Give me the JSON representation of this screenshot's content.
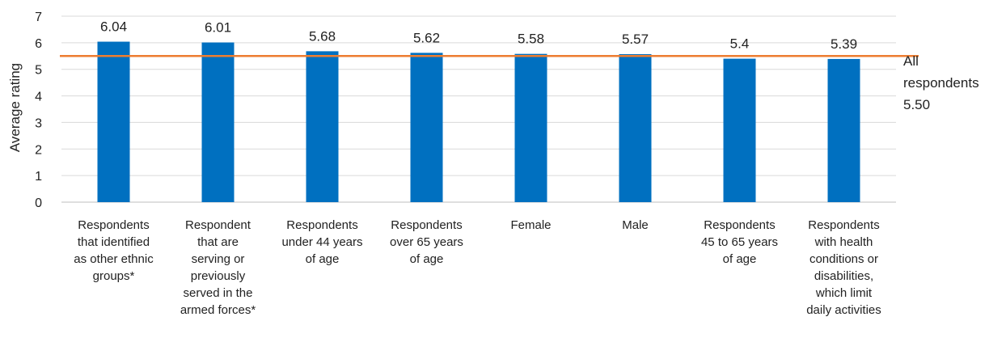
{
  "chart_data": {
    "type": "bar",
    "ylabel": "Average rating",
    "ylim": [
      0,
      7
    ],
    "yticks": [
      0,
      1,
      2,
      3,
      4,
      5,
      6,
      7
    ],
    "grid": true,
    "categories": [
      [
        "Respondents",
        "that identified",
        "as other ethnic",
        "groups*"
      ],
      [
        "Respondent",
        "that are",
        "serving or",
        "previously",
        "served in the",
        "armed forces*"
      ],
      [
        "Respondents",
        "under 44 years",
        "of age"
      ],
      [
        "Respondents",
        "over 65 years",
        "of age"
      ],
      [
        "Female"
      ],
      [
        "Male"
      ],
      [
        "Respondents",
        "45 to 65 years",
        "of age"
      ],
      [
        "Respondents",
        "with health",
        "conditions or",
        "disabilities,",
        "which limit",
        "daily activities"
      ]
    ],
    "values": [
      6.04,
      6.01,
      5.68,
      5.62,
      5.58,
      5.57,
      5.4,
      5.39
    ],
    "value_labels": [
      "6.04",
      "6.01",
      "5.68",
      "5.62",
      "5.58",
      "5.57",
      "5.4",
      "5.39"
    ],
    "reference_line": {
      "value": 5.5,
      "label_lines": [
        "All",
        "respondents",
        "5.50"
      ]
    },
    "colors": {
      "bar": "#0070C0",
      "reference_line": "#ED7D31",
      "grid": "#D9D9D9"
    }
  }
}
